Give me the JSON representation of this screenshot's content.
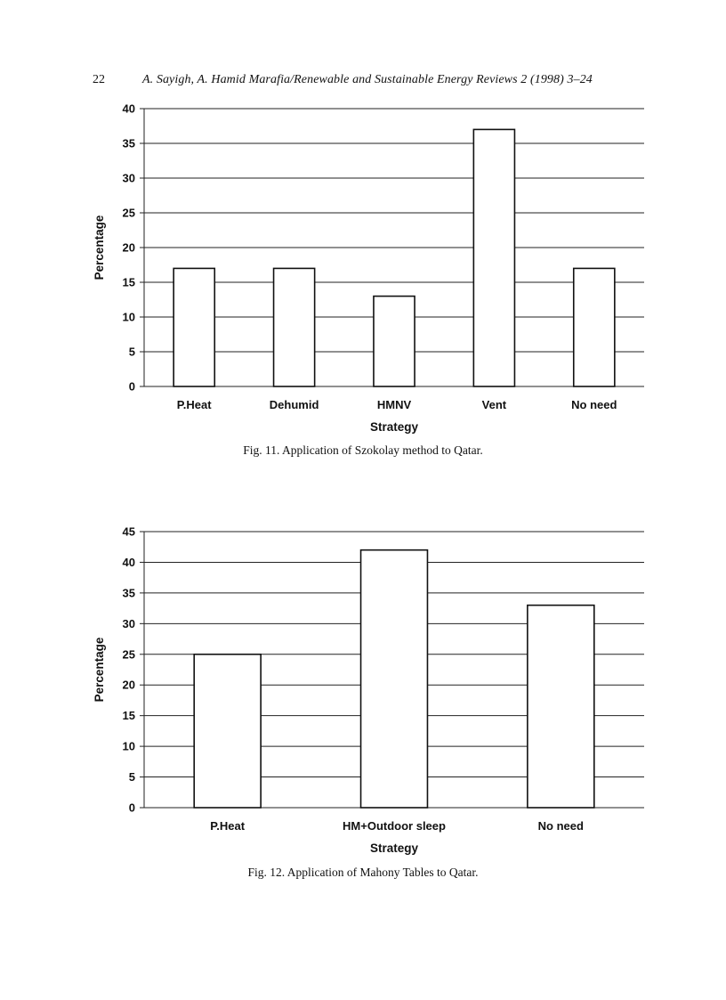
{
  "header": {
    "page_number": "22",
    "running_head": "A. Sayigh, A. Hamid Marafia/Renewable and Sustainable Energy Reviews 2 (1998) 3–24"
  },
  "figures": [
    {
      "caption": "Fig. 11. Application of Szokolay method to Qatar."
    },
    {
      "caption": "Fig. 12. Application of Mahony Tables to Qatar."
    }
  ],
  "chart_data": [
    {
      "type": "bar",
      "title": "",
      "categories": [
        "P.Heat",
        "Dehumid",
        "HMNV",
        "Vent",
        "No need"
      ],
      "values": [
        17,
        17,
        13,
        37,
        17
      ],
      "xlabel": "Strategy",
      "ylabel": "Percentage",
      "ylim": [
        0,
        40
      ],
      "yticks": [
        0,
        5,
        10,
        15,
        20,
        25,
        30,
        35,
        40
      ],
      "grid": true,
      "colors": {
        "bar_fill": "#ffffff",
        "bar_stroke": "#111111",
        "grid": "#222222"
      }
    },
    {
      "type": "bar",
      "title": "",
      "categories": [
        "P.Heat",
        "HM+Outdoor sleep",
        "No need"
      ],
      "values": [
        25,
        42,
        33
      ],
      "xlabel": "Strategy",
      "ylabel": "Percentage",
      "ylim": [
        0,
        45
      ],
      "yticks": [
        0,
        5,
        10,
        15,
        20,
        25,
        30,
        35,
        40,
        45
      ],
      "grid": true,
      "colors": {
        "bar_fill": "#ffffff",
        "bar_stroke": "#111111",
        "grid": "#222222"
      }
    }
  ]
}
